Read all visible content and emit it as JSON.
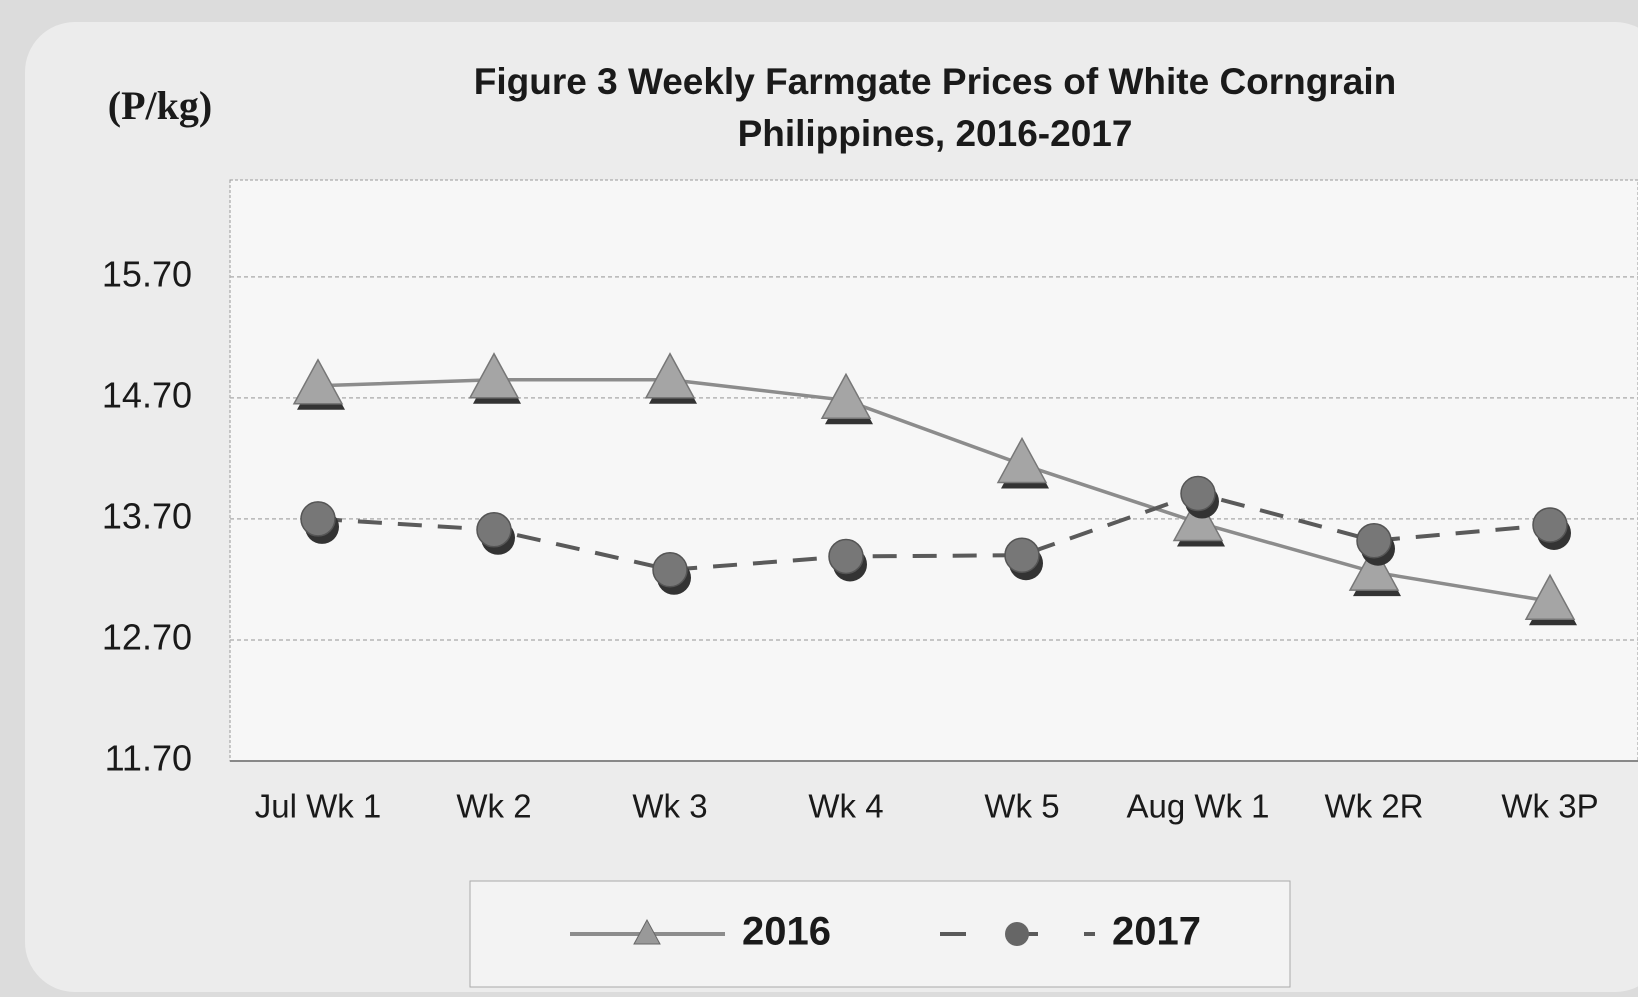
{
  "chart_data": {
    "type": "line",
    "title": "Figure 3  Weekly Farmgate Prices of White Corngrain",
    "subtitle": "Philippines, 2016-2017",
    "y_label": "(P/kg)",
    "categories": [
      "Jul Wk 1",
      "Wk 2",
      "Wk 3",
      "Wk 4",
      "Wk 5",
      "Aug Wk 1",
      "Wk 2R",
      "Wk 3P"
    ],
    "series": [
      {
        "name": "2016",
        "color": "#8c8c8c",
        "marker": "triangle",
        "dash": false,
        "values": [
          14.8,
          14.85,
          14.85,
          14.68,
          14.15,
          13.67,
          13.26,
          13.02
        ]
      },
      {
        "name": "2017",
        "color": "#5a5a5a",
        "marker": "circle",
        "dash": true,
        "values": [
          13.7,
          13.61,
          13.28,
          13.39,
          13.4,
          13.91,
          13.52,
          13.65
        ]
      }
    ],
    "ylim": [
      11.7,
      16.5
    ],
    "yticks": [
      {
        "value": 11.7,
        "label": "11.70"
      },
      {
        "value": 12.7,
        "label": "12.70"
      },
      {
        "value": 13.7,
        "label": "13.70"
      },
      {
        "value": 14.7,
        "label": "14.70"
      },
      {
        "value": 15.7,
        "label": "15.70"
      }
    ],
    "grid": true,
    "legend": "bottom"
  }
}
